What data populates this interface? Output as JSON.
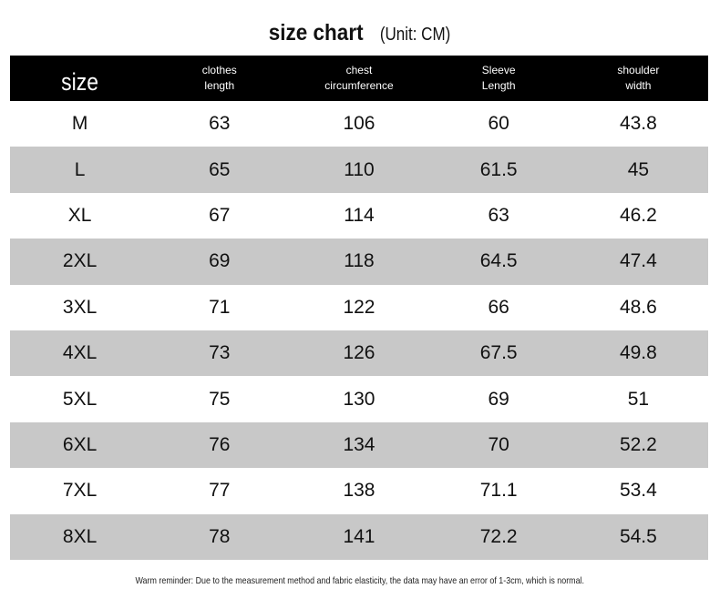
{
  "title": "size chart",
  "unit": "(Unit: CM)",
  "table": {
    "headers": [
      [
        "size"
      ],
      [
        "clothes",
        "length"
      ],
      [
        "chest",
        "circumference"
      ],
      [
        "Sleeve",
        "Length"
      ],
      [
        "shoulder",
        "width"
      ]
    ],
    "rows": [
      [
        "M",
        "63",
        "106",
        "60",
        "43.8"
      ],
      [
        "L",
        "65",
        "110",
        "61.5",
        "45"
      ],
      [
        "XL",
        "67",
        "114",
        "63",
        "46.2"
      ],
      [
        "2XL",
        "69",
        "118",
        "64.5",
        "47.4"
      ],
      [
        "3XL",
        "71",
        "122",
        "66",
        "48.6"
      ],
      [
        "4XL",
        "73",
        "126",
        "67.5",
        "49.8"
      ],
      [
        "5XL",
        "75",
        "130",
        "69",
        "51"
      ],
      [
        "6XL",
        "76",
        "134",
        "70",
        "52.2"
      ],
      [
        "7XL",
        "77",
        "138",
        "71.1",
        "53.4"
      ],
      [
        "8XL",
        "78",
        "141",
        "72.2",
        "54.5"
      ]
    ]
  },
  "note": "Warm reminder: Due to the measurement method and fabric elasticity, the data may have an error of 1-3cm, which is normal."
}
